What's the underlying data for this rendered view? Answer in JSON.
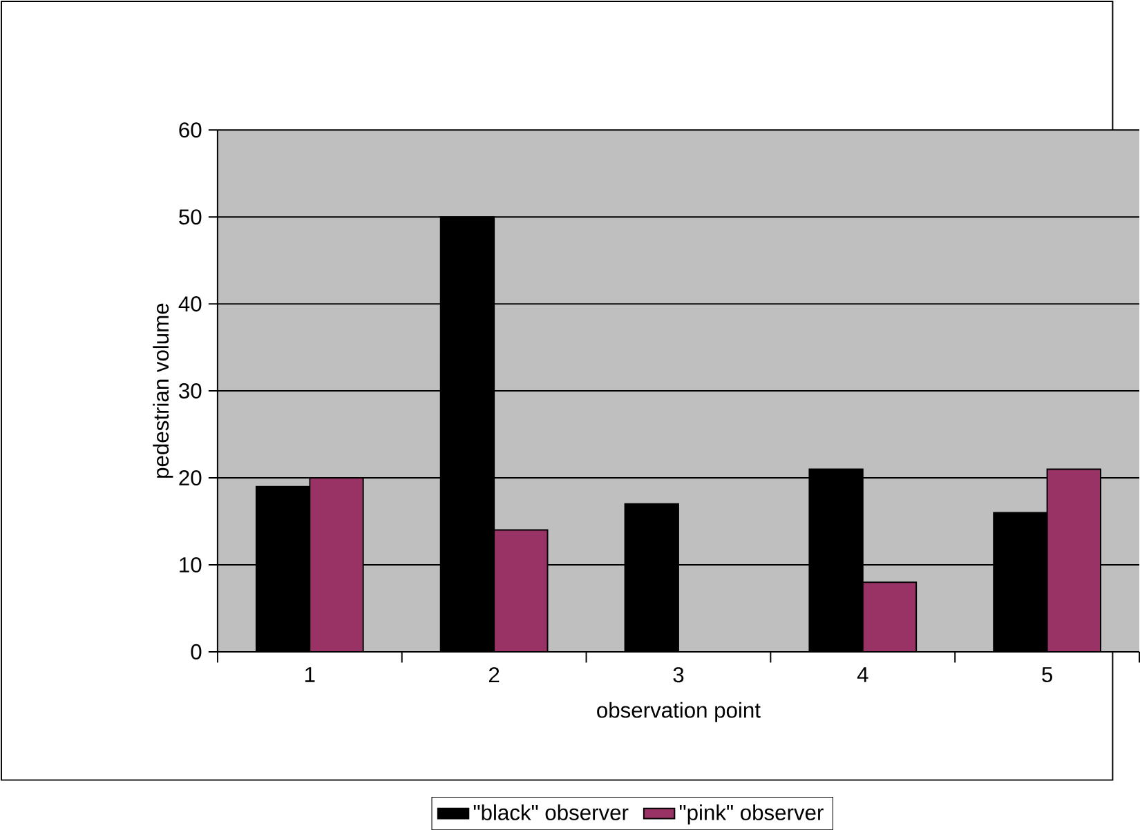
{
  "chart_data": {
    "type": "bar",
    "xlabel": "observation point",
    "ylabel": "pedestrian volume",
    "categories": [
      "1",
      "2",
      "3",
      "4",
      "5"
    ],
    "series": [
      {
        "name": "\"black\" observer",
        "color": "#000000",
        "values": [
          19,
          50,
          17,
          21,
          16
        ]
      },
      {
        "name": "\"pink\" observer",
        "color": "#993366",
        "values": [
          20,
          14,
          null,
          8,
          21
        ]
      }
    ],
    "ylim": [
      0,
      60
    ],
    "yticks": [
      0,
      10,
      20,
      30,
      40,
      50,
      60
    ],
    "grid": "y",
    "legend": "bottom"
  }
}
